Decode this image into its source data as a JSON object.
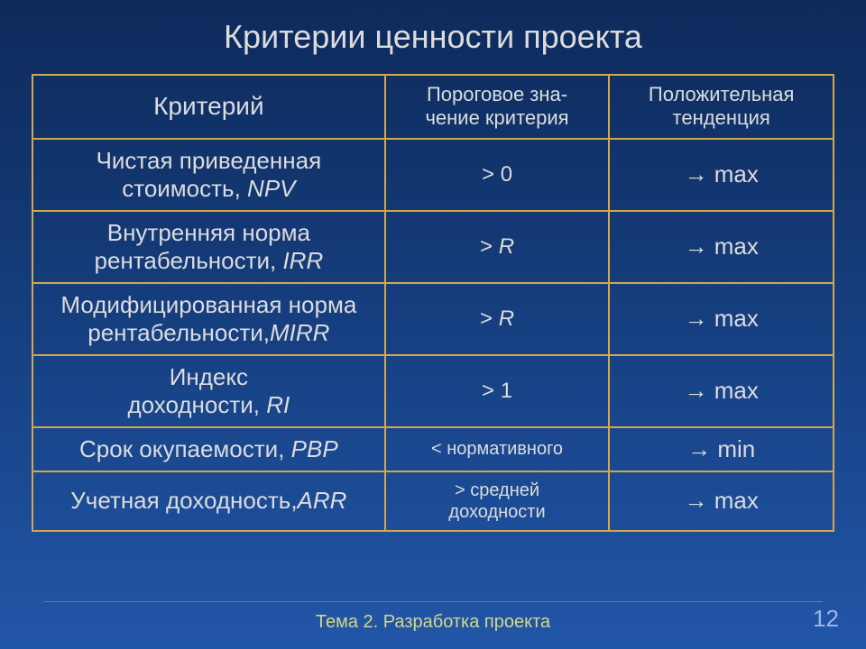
{
  "title": "Критерии ценности проекта",
  "table": {
    "headers": {
      "criterion": "Критерий",
      "threshold": "Пороговое зна-\nчение критерия",
      "trend": "Положительная\nтенденция"
    },
    "rows": [
      {
        "criterion_text": "Чистая приведенная\nстоимость, ",
        "criterion_italic": "NPV",
        "threshold": "> 0",
        "threshold_italic": "",
        "trend": "→ max"
      },
      {
        "criterion_text": "Внутренняя норма\nрентабельности, ",
        "criterion_italic": "IRR",
        "threshold": "> ",
        "threshold_italic": "R",
        "trend": "→ max"
      },
      {
        "criterion_text": "Модифицированная норма\nрентабельности,",
        "criterion_italic": "MIRR",
        "threshold": "> ",
        "threshold_italic": "R",
        "trend": "→ max"
      },
      {
        "criterion_text": "Индекс\nдоходности, ",
        "criterion_italic": "RI",
        "threshold": "> 1",
        "threshold_italic": "",
        "trend": "→ max"
      },
      {
        "criterion_text": "Срок окупаемости, ",
        "criterion_italic": "PBP",
        "threshold": "< нормативного",
        "threshold_italic": "",
        "threshold_small": true,
        "trend": "→ min"
      },
      {
        "criterion_text": "Учетная доходность,",
        "criterion_italic": "ARR",
        "threshold": "> средней\nдоходности",
        "threshold_italic": "",
        "threshold_small": true,
        "trend": "→ max"
      }
    ]
  },
  "footer": {
    "center": "Тема 2. Разработка проекта",
    "page": "12"
  },
  "colors": {
    "border": "#d4a84a",
    "text": "#dcdcdc",
    "footer_text": "#d4d88a",
    "page_number": "#9db8e0"
  }
}
